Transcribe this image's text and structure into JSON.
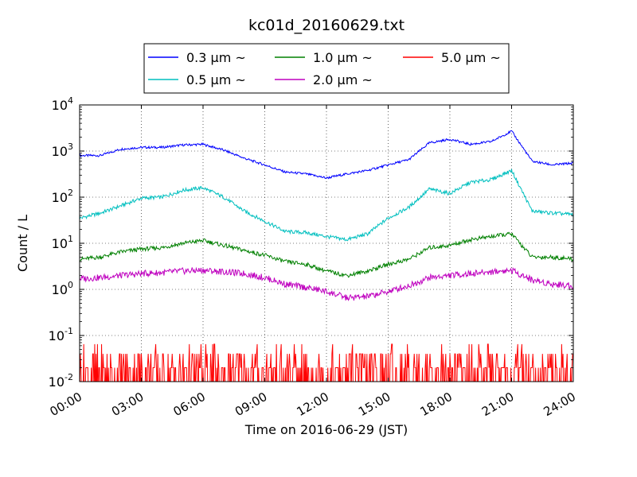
{
  "chart_data": {
    "type": "line",
    "title": "kc01d_20160629.txt",
    "xlabel": "Time on 2016-06-29 (JST)",
    "ylabel": "Count / L",
    "yscale": "log",
    "xlim": [
      "00:00",
      "24:00"
    ],
    "ylim": [
      0.01,
      10000
    ],
    "grid": true,
    "legend_position": "top-center",
    "x_ticks": [
      "00:00",
      "03:00",
      "06:00",
      "09:00",
      "12:00",
      "15:00",
      "18:00",
      "21:00",
      "24:00"
    ],
    "y_ticks": [
      {
        "base": "10",
        "exp": "-2",
        "value": 0.01
      },
      {
        "base": "10",
        "exp": "-1",
        "value": 0.1
      },
      {
        "base": "10",
        "exp": "0",
        "value": 1
      },
      {
        "base": "10",
        "exp": "1",
        "value": 10
      },
      {
        "base": "10",
        "exp": "2",
        "value": 100
      },
      {
        "base": "10",
        "exp": "3",
        "value": 1000
      },
      {
        "base": "10",
        "exp": "4",
        "value": 10000
      }
    ],
    "x": [
      "00:00",
      "01:00",
      "02:00",
      "03:00",
      "04:00",
      "05:00",
      "06:00",
      "07:00",
      "08:00",
      "09:00",
      "10:00",
      "11:00",
      "12:00",
      "13:00",
      "14:00",
      "15:00",
      "16:00",
      "17:00",
      "18:00",
      "19:00",
      "20:00",
      "21:00",
      "22:00",
      "23:00",
      "24:00"
    ],
    "series": [
      {
        "name": "0.3 μm ~",
        "color": "#0000ff",
        "values": [
          800,
          800,
          1100,
          1200,
          1200,
          1350,
          1400,
          1050,
          700,
          500,
          350,
          320,
          260,
          320,
          380,
          500,
          650,
          1500,
          1800,
          1400,
          1600,
          2700,
          600,
          500,
          550
        ]
      },
      {
        "name": "0.5 μm ~",
        "color": "#00bfbf",
        "values": [
          35,
          45,
          65,
          95,
          100,
          140,
          160,
          100,
          50,
          30,
          18,
          17,
          14,
          12,
          16,
          35,
          60,
          150,
          120,
          210,
          240,
          380,
          50,
          45,
          42
        ]
      },
      {
        "name": "1.0 μm ~",
        "color": "#008000",
        "values": [
          4.5,
          5.0,
          6.5,
          7.5,
          8.0,
          10.0,
          11.5,
          9.0,
          7.0,
          5.5,
          4.0,
          3.5,
          2.5,
          2.0,
          2.5,
          3.5,
          4.5,
          8.0,
          9.0,
          12.0,
          14.0,
          16.0,
          5.0,
          5.0,
          4.5
        ]
      },
      {
        "name": "2.0 μm ~",
        "color": "#bf00bf",
        "values": [
          1.7,
          1.8,
          2.0,
          2.2,
          2.3,
          2.5,
          2.6,
          2.4,
          2.2,
          1.8,
          1.3,
          1.1,
          0.9,
          0.65,
          0.7,
          0.9,
          1.2,
          1.8,
          2.0,
          2.2,
          2.4,
          2.6,
          1.6,
          1.3,
          1.2
        ]
      },
      {
        "name": "5.0 μm ~",
        "color": "#ff0000",
        "values": [
          0.02,
          0.03,
          0.02,
          0.03,
          0.02,
          0.03,
          0.02,
          0.02,
          0.03,
          0.02,
          0.02,
          0.03,
          0.02,
          0.02,
          0.02,
          0.03,
          0.02,
          0.03,
          0.03,
          0.02,
          0.03,
          0.02,
          0.02,
          0.02,
          0.03
        ]
      }
    ]
  }
}
